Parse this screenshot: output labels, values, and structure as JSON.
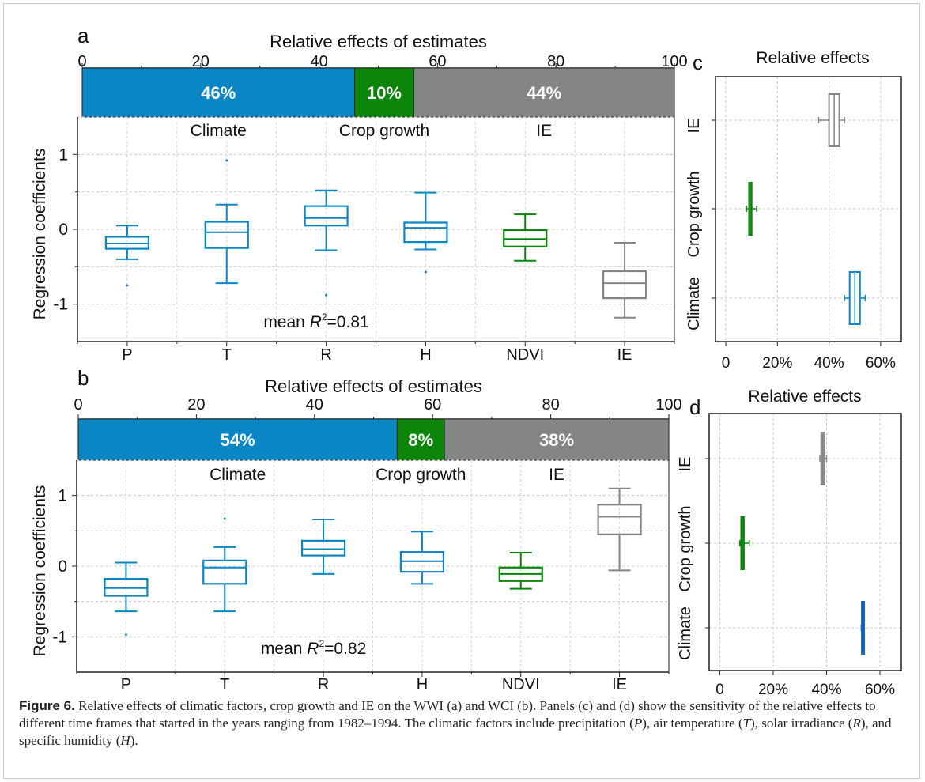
{
  "figure": {
    "caption_label": "Figure 6.",
    "caption_p1": " Relative effects of climatic factors, crop growth and IE on the WWI (a) and WCI (b). Panels (c) and (d) show the sensitivity of the relative effects to different time frames that started in the years ranging from 1982–1994. The climatic factors include precipitation (",
    "caption_v1": "P",
    "caption_p2": "), air temperature (",
    "caption_v2": "T",
    "caption_p3": "), solar irradiance (",
    "caption_v3": "R",
    "caption_p4": "), and specific humidity (",
    "caption_v4": "H",
    "caption_p5": ")."
  },
  "colors": {
    "climate": "#0a86c4",
    "crop": "#0a850a",
    "ie": "#858585",
    "climate_d": "#1565c0"
  },
  "chart_data": [
    {
      "panel": "a",
      "type": "bar",
      "subtype": "stacked-horizontal",
      "title": "Relative effects of estimates",
      "xlim": [
        0,
        100
      ],
      "xticks": [
        0,
        20,
        40,
        60,
        80,
        100
      ],
      "categories": [
        "Climate",
        "Crop growth",
        "IE"
      ],
      "values": [
        46,
        10,
        44
      ],
      "labels": [
        "46%",
        "10%",
        "44%"
      ]
    },
    {
      "panel": "a",
      "type": "box",
      "ylabel": "Regression coefficients",
      "ylim": [
        -1.5,
        1.5
      ],
      "yticks": [
        -1,
        0,
        1
      ],
      "categories": [
        "P",
        "T",
        "R",
        "H",
        "NDVI",
        "IE"
      ],
      "groups": [
        "Climate",
        "Climate",
        "Climate",
        "Climate",
        "Crop growth",
        "IE"
      ],
      "boxes": [
        {
          "min": -0.4,
          "q1": -0.26,
          "median": -0.19,
          "q3": -0.1,
          "max": 0.05,
          "outliers": [
            -0.75
          ]
        },
        {
          "min": -0.72,
          "q1": -0.25,
          "median": -0.04,
          "q3": 0.1,
          "max": 0.33,
          "outliers": [
            0.92
          ]
        },
        {
          "min": -0.28,
          "q1": 0.05,
          "median": 0.15,
          "q3": 0.31,
          "max": 0.52,
          "outliers": [
            -0.88
          ]
        },
        {
          "min": -0.27,
          "q1": -0.17,
          "median": 0.02,
          "q3": 0.09,
          "max": 0.49,
          "outliers": [
            -0.57
          ]
        },
        {
          "min": -0.42,
          "q1": -0.23,
          "median": -0.13,
          "q3": -0.01,
          "max": 0.2,
          "outliers": []
        },
        {
          "min": -1.18,
          "q1": -0.92,
          "median": -0.72,
          "q3": -0.56,
          "max": -0.18,
          "outliers": []
        }
      ],
      "annotation": "mean R²=0.81",
      "annotation_pre": "mean ",
      "annotation_var": "R",
      "annotation_sup": "2",
      "annotation_post": "=0.81"
    },
    {
      "panel": "b",
      "type": "bar",
      "subtype": "stacked-horizontal",
      "title": "Relative effects of estimates",
      "xlim": [
        0,
        100
      ],
      "xticks": [
        0,
        20,
        40,
        60,
        80,
        100
      ],
      "categories": [
        "Climate",
        "Crop growth",
        "IE"
      ],
      "values": [
        54,
        8,
        38
      ],
      "labels": [
        "54%",
        "8%",
        "38%"
      ]
    },
    {
      "panel": "b",
      "type": "box",
      "ylabel": "Regression coefficients",
      "ylim": [
        -1.5,
        1.5
      ],
      "yticks": [
        -1,
        0,
        1
      ],
      "categories": [
        "P",
        "T",
        "R",
        "H",
        "NDVI",
        "IE"
      ],
      "groups": [
        "Climate",
        "Climate",
        "Climate",
        "Climate",
        "Crop growth",
        "IE"
      ],
      "boxes": [
        {
          "min": -0.64,
          "q1": -0.42,
          "median": -0.31,
          "q3": -0.18,
          "max": 0.05,
          "outliers": [
            -0.97
          ]
        },
        {
          "min": -0.64,
          "q1": -0.25,
          "median": -0.02,
          "q3": 0.08,
          "max": 0.27,
          "outliers": [
            0.67
          ]
        },
        {
          "min": -0.11,
          "q1": 0.15,
          "median": 0.24,
          "q3": 0.36,
          "max": 0.66,
          "outliers": []
        },
        {
          "min": -0.25,
          "q1": -0.08,
          "median": 0.07,
          "q3": 0.2,
          "max": 0.49,
          "outliers": []
        },
        {
          "min": -0.32,
          "q1": -0.21,
          "median": -0.11,
          "q3": -0.02,
          "max": 0.19,
          "outliers": []
        },
        {
          "min": -0.06,
          "q1": 0.45,
          "median": 0.7,
          "q3": 0.87,
          "max": 1.1,
          "outliers": []
        }
      ],
      "annotation": "mean R²=0.82",
      "annotation_pre": "mean ",
      "annotation_var": "R",
      "annotation_sup": "2",
      "annotation_post": "=0.82"
    },
    {
      "panel": "c",
      "type": "box",
      "orientation": "horizontal",
      "title": "Relative effects",
      "categories": [
        "IE",
        "Crop growth",
        "Climate"
      ],
      "xlim": [
        -0.04,
        0.68
      ],
      "xticks": [
        0,
        0.2,
        0.4,
        0.6
      ],
      "xticklabels": [
        "0",
        "20%",
        "40%",
        "60%"
      ],
      "boxes": [
        {
          "min": 0.36,
          "q1": 0.4,
          "median": 0.42,
          "q3": 0.44,
          "max": 0.46
        },
        {
          "min": 0.08,
          "q1": 0.09,
          "median": 0.095,
          "q3": 0.1,
          "max": 0.12
        },
        {
          "min": 0.46,
          "q1": 0.48,
          "median": 0.5,
          "q3": 0.52,
          "max": 0.54
        }
      ]
    },
    {
      "panel": "d",
      "type": "box",
      "orientation": "horizontal",
      "title": "Relative effects",
      "categories": [
        "IE",
        "Crop growth",
        "Climate"
      ],
      "xlim": [
        -0.04,
        0.68
      ],
      "xticks": [
        0,
        0.2,
        0.4,
        0.6
      ],
      "xticklabels": [
        "0",
        "20%",
        "40%",
        "60%"
      ],
      "boxes": [
        {
          "min": 0.375,
          "q1": 0.38,
          "median": 0.385,
          "q3": 0.39,
          "max": 0.4
        },
        {
          "min": 0.075,
          "q1": 0.08,
          "median": 0.085,
          "q3": 0.09,
          "max": 0.11
        },
        {
          "min": 0.53,
          "q1": 0.532,
          "median": 0.535,
          "q3": 0.538,
          "max": 0.54
        }
      ]
    }
  ],
  "panel_letters": [
    "a",
    "b",
    "c",
    "d"
  ]
}
